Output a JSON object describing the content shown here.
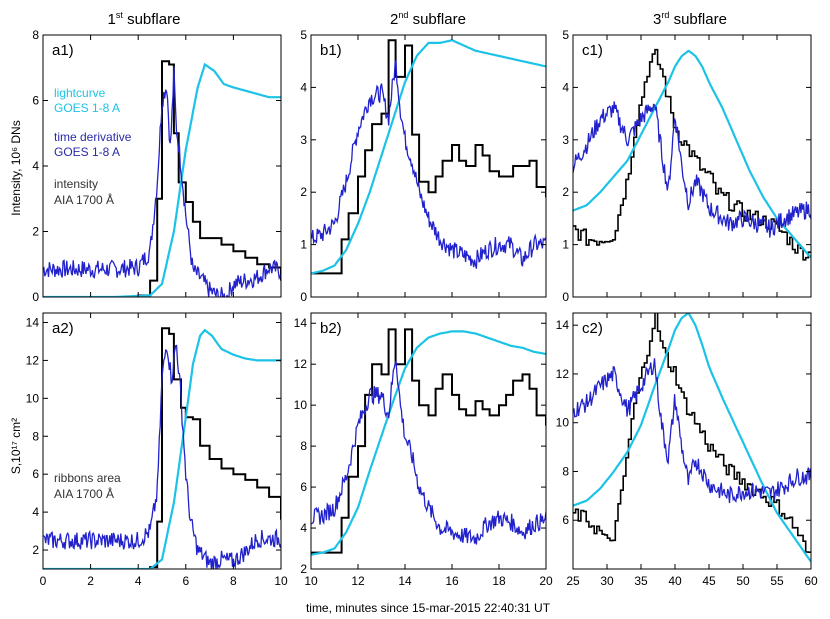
{
  "figure": {
    "xlabel_shared": "time, minutes since 15-mar-2015   22:40:31 UT",
    "row_labels": {
      "top": "Intensity, 10⁶ DNs",
      "bottom": "S,10¹⁷ cm²"
    },
    "column_titles": [
      {
        "base": "1",
        "sup": "st",
        "rest": " subflare"
      },
      {
        "base": "2",
        "sup": "nd",
        "rest": " subflare"
      },
      {
        "base": "3",
        "sup": "rd",
        "rest": " subflare"
      }
    ],
    "legend_top": [
      {
        "line1": "lightcurve",
        "line2": "GOES 1-8 A",
        "color": "#1cc3e6"
      },
      {
        "line1": "time derivative",
        "line2": "GOES 1-8 A",
        "color": "#2a2aa8"
      },
      {
        "line1": "intensity",
        "line2": "AIA 1700 Å",
        "color": "#333333"
      }
    ],
    "legend_bottom": [
      {
        "line1": "ribbons area",
        "line2": "AIA 1700 Å",
        "color": "#333333"
      }
    ],
    "colors": {
      "goes": "#1cc3e6",
      "deriv": "#2222cc",
      "aia": "#000000"
    }
  },
  "chart_data": [
    {
      "id": "a1",
      "type": "line",
      "panel_label": "a1)",
      "xlim": [
        0,
        10
      ],
      "ylim": [
        0,
        8
      ],
      "xticks": [],
      "yticks": [
        "0",
        "2",
        "4",
        "6",
        "8"
      ],
      "series": [
        {
          "kind": "step",
          "x": [
            0,
            1,
            2,
            3,
            4,
            4.5,
            4.8,
            5.0,
            5.3,
            5.5,
            5.7,
            6.0,
            6.3,
            6.6,
            7.0,
            7.5,
            8.0,
            8.5,
            9.0,
            9.5,
            10
          ],
          "y": [
            0,
            0,
            0,
            0,
            0.05,
            0.5,
            3.0,
            7.2,
            7.1,
            5.0,
            3.5,
            2.9,
            2.3,
            1.8,
            1.8,
            1.6,
            1.4,
            1.2,
            1.0,
            0.9,
            0.5
          ]
        },
        {
          "kind": "smooth",
          "x": [
            0,
            3,
            4.5,
            5.0,
            5.5,
            6.0,
            6.5,
            6.8,
            7.2,
            7.6,
            8.0,
            8.5,
            9.0,
            9.5,
            10
          ],
          "y": [
            0,
            0,
            0.05,
            0.4,
            2.0,
            4.5,
            6.4,
            7.1,
            6.9,
            6.5,
            6.4,
            6.3,
            6.2,
            6.1,
            6.1
          ]
        },
        {
          "kind": "noisy",
          "x": [
            0,
            1,
            2,
            3,
            4,
            4.5,
            4.8,
            5.0,
            5.2,
            5.35,
            5.5,
            5.6,
            5.8,
            6.0,
            6.3,
            6.6,
            7.0,
            7.3,
            7.7,
            8.0,
            8.5,
            9.0,
            9.5,
            10
          ],
          "y": [
            0.85,
            0.85,
            0.85,
            0.85,
            0.9,
            1.4,
            3.5,
            6.0,
            6.5,
            4.5,
            6.8,
            5.2,
            4.0,
            2.5,
            0.8,
            0.6,
            0.2,
            0.05,
            0.0,
            0.4,
            0.5,
            0.6,
            0.9,
            0.8
          ]
        }
      ]
    },
    {
      "id": "b1",
      "type": "line",
      "panel_label": "b1)",
      "xlim": [
        10,
        20
      ],
      "ylim": [
        0,
        5
      ],
      "xticks": [],
      "yticks": [
        "0",
        "1",
        "2",
        "3",
        "4",
        "5"
      ],
      "series": [
        {
          "kind": "step",
          "x": [
            10,
            11,
            11.3,
            11.6,
            12.0,
            12.3,
            12.6,
            13.0,
            13.3,
            13.6,
            14.0,
            14.3,
            14.6,
            15.0,
            15.3,
            15.6,
            16.0,
            16.3,
            16.6,
            17.0,
            17.3,
            17.6,
            18.0,
            18.3,
            18.6,
            19.0,
            19.3,
            19.6,
            20
          ],
          "y": [
            0.45,
            0.45,
            1.1,
            1.6,
            2.3,
            2.8,
            3.3,
            3.5,
            4.9,
            4.2,
            4.8,
            3.1,
            2.2,
            2.0,
            2.3,
            2.6,
            2.9,
            2.6,
            2.5,
            2.9,
            2.7,
            2.4,
            2.3,
            2.3,
            2.5,
            2.5,
            2.6,
            2.1,
            1.9
          ]
        },
        {
          "kind": "smooth",
          "x": [
            10,
            10.5,
            11,
            11.5,
            12,
            12.5,
            13,
            13.5,
            14,
            14.5,
            15,
            15.5,
            16,
            16.5,
            17,
            17.5,
            18,
            18.5,
            19,
            19.5,
            20
          ],
          "y": [
            0.45,
            0.5,
            0.6,
            0.9,
            1.4,
            2.0,
            2.7,
            3.4,
            4.1,
            4.6,
            4.85,
            4.85,
            4.9,
            4.8,
            4.7,
            4.65,
            4.6,
            4.55,
            4.5,
            4.45,
            4.4
          ]
        },
        {
          "kind": "noisy",
          "x": [
            10,
            10.5,
            11,
            11.5,
            12,
            12.5,
            13,
            13.3,
            13.6,
            13.8,
            14.0,
            14.3,
            14.6,
            15,
            15.5,
            16,
            16.5,
            17,
            17.5,
            18,
            18.5,
            19,
            19.5,
            20
          ],
          "y": [
            1.1,
            1.2,
            1.4,
            2.2,
            3.2,
            3.8,
            3.9,
            3.4,
            4.5,
            3.6,
            3.0,
            2.6,
            2.0,
            1.5,
            1.1,
            0.9,
            0.8,
            0.7,
            0.9,
            1.0,
            1.0,
            0.7,
            1.0,
            1.0
          ]
        }
      ]
    },
    {
      "id": "c1",
      "type": "line",
      "panel_label": "c1)",
      "xlim": [
        25,
        60
      ],
      "ylim": [
        0,
        5
      ],
      "xticks": [],
      "yticks": [
        "0",
        "1",
        "2",
        "3",
        "4",
        "5"
      ],
      "series": [
        {
          "kind": "stepnoisy",
          "x": [
            25,
            27,
            29,
            31,
            32,
            33,
            34,
            35,
            36,
            37,
            38,
            39,
            40,
            41,
            42,
            43,
            44,
            45,
            46,
            47,
            48,
            50,
            52,
            54,
            56,
            58,
            60
          ],
          "y": [
            1.3,
            1.1,
            1.1,
            1.2,
            1.8,
            2.3,
            3.2,
            3.8,
            4.4,
            4.6,
            4.3,
            3.7,
            3.2,
            3.0,
            2.8,
            2.6,
            2.4,
            2.3,
            2.0,
            1.9,
            1.8,
            1.6,
            1.5,
            1.4,
            1.2,
            0.9,
            0.8
          ]
        },
        {
          "kind": "smooth",
          "x": [
            25,
            27,
            29,
            31,
            33,
            35,
            37,
            39,
            40,
            41,
            42,
            43,
            44,
            45,
            47,
            49,
            51,
            53,
            55,
            57,
            59,
            60
          ],
          "y": [
            1.65,
            1.75,
            2.0,
            2.3,
            2.6,
            3.1,
            3.6,
            4.1,
            4.4,
            4.6,
            4.7,
            4.6,
            4.4,
            4.1,
            3.6,
            3.0,
            2.4,
            1.9,
            1.5,
            1.2,
            0.9,
            0.75
          ]
        },
        {
          "kind": "noisy",
          "x": [
            25,
            27,
            29,
            31,
            33,
            35,
            37,
            38,
            39,
            40,
            41,
            42,
            43,
            44,
            45,
            46,
            48,
            50,
            52,
            54,
            56,
            58,
            60
          ],
          "y": [
            2.5,
            2.9,
            3.4,
            3.6,
            3.0,
            3.4,
            3.7,
            2.8,
            2.0,
            3.5,
            2.5,
            1.8,
            2.2,
            2.0,
            1.7,
            1.6,
            1.4,
            1.5,
            1.4,
            1.3,
            1.5,
            1.6,
            1.7
          ]
        }
      ]
    },
    {
      "id": "a2",
      "type": "line",
      "panel_label": "a2)",
      "xlim": [
        0,
        10
      ],
      "ylim": [
        1,
        14.5
      ],
      "xticks": [
        "0",
        "2",
        "4",
        "6",
        "8",
        "10"
      ],
      "yticks": [
        "2",
        "4",
        "6",
        "8",
        "10",
        "12",
        "14"
      ],
      "series": [
        {
          "kind": "step",
          "x": [
            0,
            2,
            4,
            4.5,
            4.8,
            5.0,
            5.3,
            5.5,
            5.8,
            6.0,
            6.3,
            6.6,
            7.0,
            7.5,
            8.0,
            8.5,
            9.0,
            9.5,
            10
          ],
          "y": [
            1.0,
            1.0,
            1.0,
            1.1,
            3.5,
            13.7,
            13.4,
            11.0,
            9.5,
            9.0,
            8.9,
            7.5,
            6.8,
            6.3,
            6.0,
            5.7,
            5.3,
            4.8,
            3.6
          ]
        },
        {
          "kind": "smooth",
          "x": [
            0,
            4.5,
            5.0,
            5.5,
            6.0,
            6.3,
            6.6,
            6.8,
            7.1,
            7.5,
            8.0,
            8.5,
            9.0,
            9.5,
            10
          ],
          "y": [
            1.0,
            1.0,
            1.5,
            4.5,
            9.0,
            11.8,
            13.3,
            13.6,
            13.3,
            12.6,
            12.3,
            12.1,
            12.0,
            12.0,
            12.0
          ]
        },
        {
          "kind": "noisy",
          "x": [
            0,
            2,
            4,
            4.5,
            4.8,
            5.0,
            5.2,
            5.4,
            5.6,
            5.8,
            6.0,
            6.2,
            6.5,
            7.0,
            7.5,
            8.0,
            8.5,
            9.0,
            9.5,
            10
          ],
          "y": [
            2.5,
            2.5,
            2.5,
            3.0,
            5.0,
            11.0,
            13.0,
            11.0,
            13.0,
            10.0,
            6.0,
            3.5,
            2.0,
            1.3,
            1.5,
            1.4,
            1.9,
            2.6,
            2.6,
            2.6
          ]
        }
      ]
    },
    {
      "id": "b2",
      "type": "line",
      "panel_label": "b2)",
      "xlim": [
        10,
        20
      ],
      "ylim": [
        2,
        14.5
      ],
      "xticks": [
        "10",
        "12",
        "14",
        "16",
        "18",
        "20"
      ],
      "yticks": [
        "2",
        "4",
        "6",
        "8",
        "10",
        "12",
        "14"
      ],
      "series": [
        {
          "kind": "step",
          "x": [
            10,
            11,
            11.3,
            11.6,
            12.0,
            12.3,
            12.6,
            13.0,
            13.3,
            13.6,
            14.0,
            14.3,
            14.6,
            15.0,
            15.3,
            15.6,
            16.0,
            16.3,
            16.6,
            17.0,
            17.3,
            17.6,
            18.0,
            18.3,
            18.6,
            19.0,
            19.3,
            19.6,
            20
          ],
          "y": [
            2.8,
            2.8,
            4.5,
            6.5,
            8.0,
            10.5,
            12.0,
            11.5,
            13.7,
            12.0,
            13.7,
            11.2,
            10.0,
            9.5,
            10.8,
            11.5,
            10.5,
            9.8,
            9.5,
            10.2,
            9.8,
            9.5,
            10.0,
            10.5,
            11.2,
            11.5,
            10.8,
            9.5,
            9.0
          ]
        },
        {
          "kind": "smooth",
          "x": [
            10,
            10.5,
            11,
            11.5,
            12,
            12.5,
            13,
            13.5,
            14,
            14.5,
            15,
            15.5,
            16,
            16.5,
            17,
            17.5,
            18,
            18.5,
            19,
            19.5,
            20
          ],
          "y": [
            2.7,
            2.8,
            3.0,
            3.8,
            5.0,
            6.8,
            8.5,
            10.2,
            11.8,
            12.8,
            13.3,
            13.5,
            13.6,
            13.6,
            13.5,
            13.3,
            13.1,
            12.9,
            12.8,
            12.6,
            12.5
          ]
        },
        {
          "kind": "noisy",
          "x": [
            10,
            10.5,
            11,
            11.5,
            12,
            12.5,
            13,
            13.3,
            13.6,
            13.8,
            14.0,
            14.3,
            14.6,
            15,
            15.5,
            16,
            16.5,
            17,
            17.5,
            18,
            18.5,
            19,
            19.5,
            20
          ],
          "y": [
            4.5,
            4.6,
            5.0,
            6.5,
            9.0,
            10.5,
            10.5,
            9.5,
            12.5,
            10.0,
            8.5,
            7.5,
            6.0,
            5.0,
            4.0,
            3.8,
            3.6,
            3.5,
            4.2,
            4.5,
            4.3,
            3.8,
            4.2,
            4.4
          ]
        }
      ]
    },
    {
      "id": "c2",
      "type": "line",
      "panel_label": "c2)",
      "xlim": [
        25,
        60
      ],
      "ylim": [
        4,
        14.5
      ],
      "xticks": [
        "25",
        "30",
        "35",
        "40",
        "45",
        "50",
        "55",
        "60"
      ],
      "yticks": [
        "6",
        "8",
        "10",
        "12",
        "14"
      ],
      "series": [
        {
          "kind": "stepnoisy",
          "x": [
            25,
            27,
            29,
            30,
            31,
            32,
            33,
            34,
            35,
            36,
            37,
            38,
            39,
            40,
            41,
            42,
            43,
            44,
            45,
            46,
            47,
            48,
            50,
            52,
            54,
            56,
            58,
            60
          ],
          "y": [
            6.3,
            6.0,
            5.5,
            5.0,
            5.5,
            7.0,
            9.0,
            10.8,
            12.0,
            13.2,
            14.5,
            13.0,
            12.5,
            12.0,
            11.0,
            10.5,
            10.0,
            9.5,
            9.0,
            8.7,
            8.3,
            8.0,
            7.6,
            7.2,
            6.8,
            6.3,
            5.5,
            4.2
          ]
        },
        {
          "kind": "smooth",
          "x": [
            25,
            27,
            29,
            31,
            33,
            35,
            37,
            39,
            40,
            41,
            42,
            43,
            44,
            45,
            47,
            49,
            51,
            53,
            55,
            57,
            59,
            60
          ],
          "y": [
            6.6,
            6.8,
            7.3,
            8.0,
            8.8,
            9.9,
            11.5,
            13.0,
            13.8,
            14.3,
            14.5,
            14.0,
            13.2,
            12.3,
            11.0,
            9.8,
            8.6,
            7.4,
            6.3,
            5.5,
            4.7,
            4.3
          ]
        },
        {
          "kind": "noisy",
          "x": [
            25,
            27,
            29,
            31,
            33,
            35,
            37,
            38,
            39,
            40,
            41,
            42,
            43,
            44,
            45,
            46,
            48,
            50,
            52,
            54,
            56,
            58,
            60
          ],
          "y": [
            10.5,
            10.8,
            11.5,
            12.0,
            10.5,
            11.5,
            12.5,
            10.0,
            8.5,
            11.0,
            9.0,
            7.5,
            8.5,
            8.0,
            7.5,
            7.3,
            7.0,
            7.2,
            7.2,
            7.1,
            7.4,
            7.8,
            7.8
          ]
        }
      ]
    }
  ]
}
